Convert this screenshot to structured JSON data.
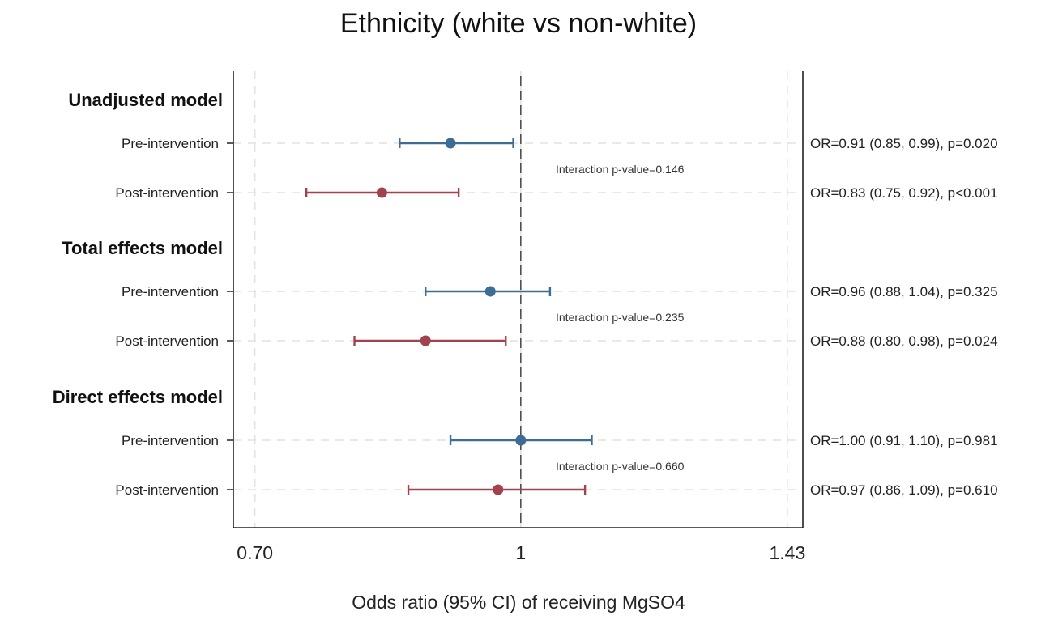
{
  "chart_data": {
    "type": "forest",
    "title": "Ethnicity (white vs non-white)",
    "xlabel": "Odds ratio (95% CI) of receiving MgSO4",
    "x_scale": "log",
    "xlim": [
      0.68,
      1.46
    ],
    "x_ticks": [
      0.7,
      1,
      1.43
    ],
    "x_tick_labels": [
      "0.70",
      "1",
      "1.43"
    ],
    "reference_line": 1,
    "grid": true,
    "colors": {
      "pre": "#3d6d94",
      "post": "#a3424f",
      "axis": "#222222",
      "grid": "#e2e2e2"
    },
    "groups": [
      {
        "label": "Unadjusted model",
        "interaction": "Interaction p-value=0.146",
        "rows": [
          {
            "label": "Pre-intervention",
            "period": "pre",
            "or": 0.91,
            "lo": 0.85,
            "hi": 0.99,
            "text": "OR=0.91 (0.85, 0.99), p=0.020"
          },
          {
            "label": "Post-intervention",
            "period": "post",
            "or": 0.83,
            "lo": 0.75,
            "hi": 0.92,
            "text": "OR=0.83 (0.75, 0.92), p<0.001"
          }
        ]
      },
      {
        "label": "Total effects model",
        "interaction": "Interaction p-value=0.235",
        "rows": [
          {
            "label": "Pre-intervention",
            "period": "pre",
            "or": 0.96,
            "lo": 0.88,
            "hi": 1.04,
            "text": "OR=0.96 (0.88, 1.04), p=0.325"
          },
          {
            "label": "Post-intervention",
            "period": "post",
            "or": 0.88,
            "lo": 0.8,
            "hi": 0.98,
            "text": "OR=0.88 (0.80, 0.98), p=0.024"
          }
        ]
      },
      {
        "label": "Direct effects model",
        "interaction": "Interaction p-value=0.660",
        "rows": [
          {
            "label": "Pre-intervention",
            "period": "pre",
            "or": 1.0,
            "lo": 0.91,
            "hi": 1.1,
            "text": "OR=1.00 (0.91, 1.10), p=0.981"
          },
          {
            "label": "Post-intervention",
            "period": "post",
            "or": 0.97,
            "lo": 0.86,
            "hi": 1.09,
            "text": "OR=0.97 (0.86, 1.09), p=0.610"
          }
        ]
      }
    ]
  }
}
